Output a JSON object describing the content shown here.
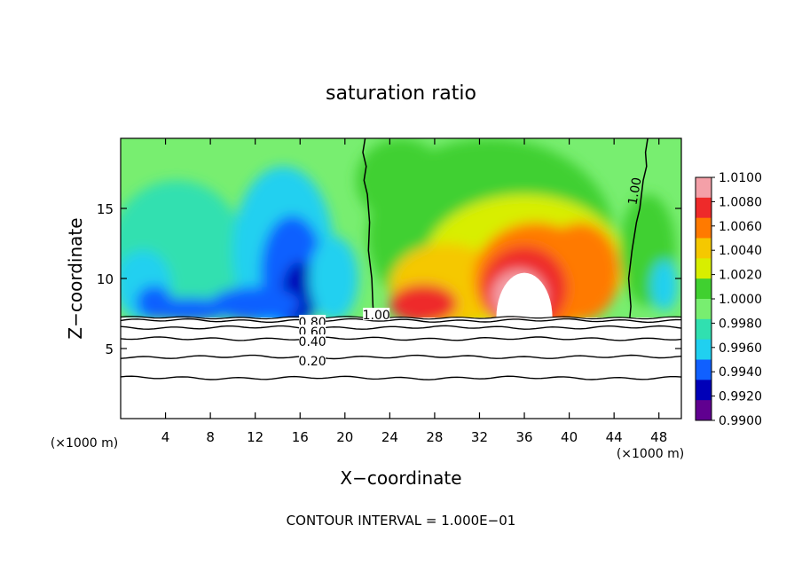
{
  "chart_data": {
    "type": "heatmap",
    "title": "saturation ratio",
    "xlabel": "X−coordinate",
    "ylabel": "Z−coordinate",
    "x_unit_left": "(×1000 m)",
    "x_unit_right": "(×1000 m)",
    "footer": "CONTOUR INTERVAL = 1.000E−01",
    "xlim": [
      0,
      50
    ],
    "ylim": [
      0,
      20
    ],
    "x_ticks": [
      4,
      8,
      12,
      16,
      20,
      24,
      28,
      32,
      36,
      40,
      44,
      48
    ],
    "y_ticks": [
      5,
      10,
      15
    ],
    "colorbar": {
      "min": 0.99,
      "max": 1.01,
      "labels": [
        "1.0100",
        "1.0080",
        "1.0060",
        "1.0040",
        "1.0020",
        "1.0000",
        "0.9980",
        "0.9960",
        "0.9940",
        "0.9920",
        "0.9900"
      ],
      "colors": [
        "#f4a0a8",
        "#ee2a2a",
        "#ff7a00",
        "#f5c800",
        "#d8ee00",
        "#40d030",
        "#78ee70",
        "#30e0b0",
        "#20d0f0",
        "#1060ff",
        "#0000b8",
        "#600090"
      ]
    },
    "contour_labels": [
      {
        "text": "1.00",
        "x": 22.8,
        "y": 7.4
      },
      {
        "text": "1.00",
        "x": 46.2,
        "y": 16.5
      },
      {
        "text": "0.80",
        "x": 17.1,
        "y": 6.9
      },
      {
        "text": "0.60",
        "x": 17.1,
        "y": 6.2
      },
      {
        "text": "0.40",
        "x": 17.1,
        "y": 5.5
      },
      {
        "text": "0.20",
        "x": 17.1,
        "y": 4.1
      }
    ],
    "lower_contours": [
      {
        "z": 7.0,
        "level": 0.8
      },
      {
        "z": 6.5,
        "level": 0.6
      },
      {
        "z": 5.7,
        "level": 0.4
      },
      {
        "z": 4.4,
        "level": 0.2
      },
      {
        "z": 2.9,
        "level": 0.1
      }
    ]
  }
}
